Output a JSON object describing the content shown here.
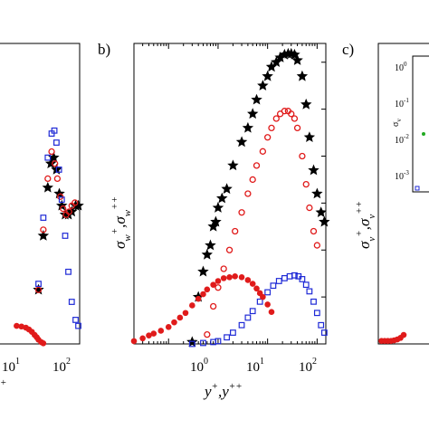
{
  "colors": {
    "black": "#000000",
    "red": "#e01b1b",
    "blue": "#1f2ad6",
    "green": "#22aa22"
  },
  "panels": {
    "a": {
      "xticks": [
        "10",
        "10"
      ],
      "xtick_exps": [
        "1",
        "2"
      ],
      "ylabel_fragment": "+"
    },
    "b": {
      "tag": "b)",
      "ylabel_base": "σ",
      "ylabel_sub1": "w",
      "ylabel_sup1": "+",
      "ylabel_sep": ",σ",
      "ylabel_sub2": "w",
      "ylabel_sup2": "++",
      "xlabel_base": "y",
      "xlabel_sup1": "+",
      "xlabel_sep": ",y",
      "xlabel_sup2": "++",
      "xticks": [
        "10",
        "10",
        "10"
      ],
      "xtick_exps": [
        "0",
        "1",
        "2"
      ]
    },
    "c": {
      "tag": "c)",
      "ylabel_base": "σ",
      "ylabel_sub1": "v",
      "ylabel_sup1": "+",
      "ylabel_sep": ",σ",
      "ylabel_sub2": "v",
      "ylabel_sup2": "++",
      "inset_ylabel": "σ",
      "inset_ylabel_sub": "v",
      "inset_yticks": [
        "10",
        "10",
        "10",
        "10"
      ],
      "inset_ytick_exps": [
        "0",
        "-1",
        "-2",
        "-3"
      ]
    }
  },
  "chart_data": [
    {
      "panel": "a",
      "type": "scatter",
      "xscale": "log",
      "series": [
        {
          "marker": "filled-star",
          "color": "#000000",
          "x": [
            3,
            5,
            8,
            11,
            15,
            20,
            27,
            35,
            50,
            70,
            100,
            150,
            200
          ],
          "y": [
            0.18,
            0.36,
            0.52,
            0.6,
            0.62,
            0.58,
            0.5,
            0.46,
            0.43,
            0.43,
            0.44,
            0.46,
            0.46
          ]
        },
        {
          "marker": "open-circle",
          "color": "#e01b1b",
          "x": [
            3,
            5,
            8,
            12,
            17,
            22,
            30,
            40,
            55,
            75,
            100,
            140
          ],
          "y": [
            0.18,
            0.38,
            0.55,
            0.64,
            0.6,
            0.55,
            0.49,
            0.45,
            0.43,
            0.44,
            0.46,
            0.47
          ]
        },
        {
          "marker": "open-square",
          "color": "#1f2ad6",
          "x": [
            3,
            5,
            8,
            12,
            16,
            20,
            26,
            35,
            50,
            70,
            100,
            150,
            200
          ],
          "y": [
            0.2,
            0.42,
            0.62,
            0.7,
            0.71,
            0.67,
            0.58,
            0.48,
            0.36,
            0.24,
            0.14,
            0.08,
            0.06
          ]
        },
        {
          "marker": "filled-circle",
          "color": "#e01b1b",
          "x": [
            0.3,
            0.5,
            0.8,
            1.1,
            1.5,
            2,
            2.5,
            3,
            4,
            5
          ],
          "y": [
            0.06,
            0.058,
            0.054,
            0.048,
            0.04,
            0.03,
            0.022,
            0.014,
            0.006,
            0.002
          ]
        }
      ]
    },
    {
      "panel": "b",
      "type": "scatter",
      "xscale": "log",
      "xlim": [
        0.02,
        150
      ],
      "ylim": [
        0,
        3.2
      ],
      "series": [
        {
          "marker": "filled-star",
          "color": "#000000",
          "x": [
            0.3,
            0.4,
            0.5,
            0.6,
            0.7,
            0.8,
            0.9,
            1,
            1.2,
            1.5,
            2,
            3,
            4,
            5,
            6,
            8,
            10,
            12,
            15,
            18,
            22,
            26,
            30,
            35,
            40,
            50,
            60,
            70,
            85,
            100,
            120,
            140
          ],
          "y": [
            0.02,
            0.5,
            0.77,
            0.95,
            1.05,
            1.25,
            1.3,
            1.45,
            1.55,
            1.65,
            1.9,
            2.15,
            2.3,
            2.45,
            2.6,
            2.75,
            2.85,
            2.95,
            3.0,
            3.05,
            3.08,
            3.09,
            3.09,
            3.08,
            3.02,
            2.85,
            2.55,
            2.2,
            1.85,
            1.6,
            1.4,
            1.3
          ]
        },
        {
          "marker": "open-circle",
          "color": "#e01b1b",
          "x": [
            0.6,
            0.8,
            1,
            1.3,
            1.7,
            2.2,
            3,
            4,
            5,
            6,
            8,
            10,
            12,
            15,
            18,
            22,
            26,
            30,
            35,
            40,
            50,
            60,
            70,
            85,
            100
          ],
          "y": [
            0.1,
            0.4,
            0.6,
            0.8,
            1.0,
            1.2,
            1.4,
            1.6,
            1.75,
            1.9,
            2.05,
            2.2,
            2.3,
            2.4,
            2.45,
            2.48,
            2.48,
            2.45,
            2.4,
            2.3,
            2.0,
            1.7,
            1.45,
            1.2,
            1.05
          ]
        },
        {
          "marker": "open-square",
          "color": "#1f2ad6",
          "x": [
            0.3,
            0.5,
            0.8,
            1,
            1.5,
            2,
            3,
            4,
            5,
            7,
            10,
            13,
            17,
            22,
            28,
            35,
            42,
            50,
            60,
            70,
            85,
            100,
            120,
            140
          ],
          "y": [
            0.0,
            0.01,
            0.02,
            0.03,
            0.07,
            0.12,
            0.2,
            0.28,
            0.35,
            0.45,
            0.55,
            0.62,
            0.67,
            0.7,
            0.72,
            0.73,
            0.72,
            0.69,
            0.63,
            0.56,
            0.45,
            0.33,
            0.2,
            0.12
          ]
        },
        {
          "marker": "filled-circle",
          "color": "#e01b1b",
          "x": [
            0.02,
            0.03,
            0.04,
            0.05,
            0.07,
            0.1,
            0.13,
            0.17,
            0.22,
            0.3,
            0.4,
            0.5,
            0.6,
            0.8,
            1,
            1.3,
            1.7,
            2.2,
            3,
            4,
            5,
            6,
            7,
            8,
            10,
            12
          ],
          "y": [
            0.03,
            0.06,
            0.09,
            0.11,
            0.14,
            0.18,
            0.23,
            0.28,
            0.33,
            0.41,
            0.48,
            0.53,
            0.58,
            0.63,
            0.67,
            0.7,
            0.71,
            0.72,
            0.71,
            0.68,
            0.64,
            0.59,
            0.54,
            0.5,
            0.42,
            0.34
          ]
        }
      ]
    },
    {
      "panel": "c",
      "type": "scatter",
      "series": [
        {
          "marker": "filled-circle",
          "color": "#e01b1b",
          "x": [
            1,
            2,
            3,
            4,
            5,
            6,
            7,
            8
          ],
          "y": [
            0.01,
            0.01,
            0.01,
            0.01,
            0.012,
            0.015,
            0.02,
            0.03
          ]
        }
      ]
    }
  ]
}
